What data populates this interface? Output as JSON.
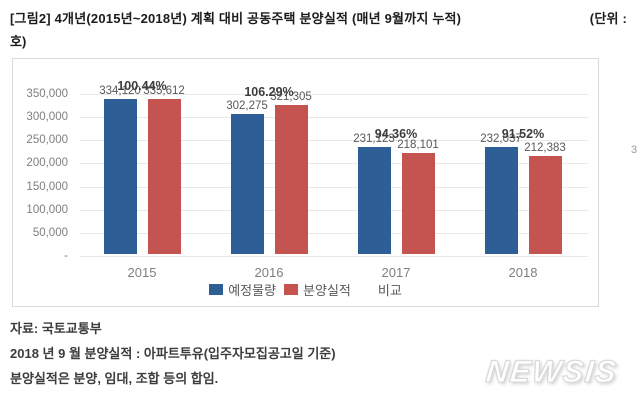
{
  "header": {
    "title": "[그림2] 4개년(2015년~2018년) 계획 대비 공동주택 분양실적 (매년 9월까지 누적)",
    "unit_top": "(단위 :",
    "unit_wrap": "호)"
  },
  "chart_data": {
    "type": "bar",
    "title": "4개년(2015년~2018년) 계획 대비 공동주택 분양실적",
    "categories": [
      "2015",
      "2016",
      "2017",
      "2018"
    ],
    "series": [
      {
        "name": "예정물량",
        "color": "#2e5e96",
        "values": [
          334120,
          302275,
          231123,
          232037
        ]
      },
      {
        "name": "분양실적",
        "color": "#c5534f",
        "values": [
          335612,
          321305,
          218101,
          212383
        ]
      }
    ],
    "percent_series": {
      "name": "비교",
      "labels": [
        "100.44%",
        "106.29%",
        "94.36%",
        "91.52%"
      ]
    },
    "y_axis": {
      "min": 0,
      "max": 350000,
      "step": 50000,
      "tick_labels": [
        "-",
        "50,000",
        "100,000",
        "150,000",
        "200,000",
        "250,000",
        "300,000",
        "350,000"
      ]
    },
    "legend": [
      "예정물량",
      "분양실적",
      "비교"
    ],
    "legend_position": "bottom",
    "grid": true
  },
  "footer": {
    "lines": [
      "자료: 국토교통부",
      "2018 년 9 월 분양실적 : 아파트투유(입주자모집공고일 기준)",
      "분양실적은 분양, 임대, 조합 등의 합임."
    ]
  },
  "watermark": {
    "text": "NEWSIS"
  },
  "artifacts": {
    "edge_text": "3"
  }
}
